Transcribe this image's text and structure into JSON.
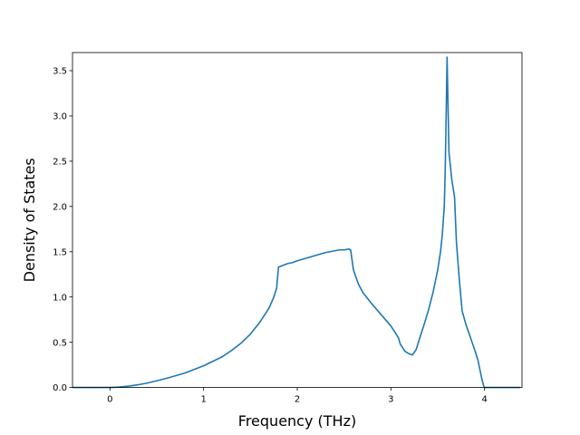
{
  "chart_data": {
    "type": "line",
    "title": "",
    "xlabel": "Frequency (THz)",
    "ylabel": "Density of States",
    "xlim": [
      -0.4,
      4.4
    ],
    "ylim": [
      0.0,
      3.7
    ],
    "x_ticks": [
      0,
      1,
      2,
      3,
      4
    ],
    "y_ticks": [
      0.0,
      0.5,
      1.0,
      1.5,
      2.0,
      2.5,
      3.0,
      3.5
    ],
    "x_tick_labels": [
      "0",
      "1",
      "2",
      "3",
      "4"
    ],
    "y_tick_labels": [
      "0.0",
      "0.5",
      "1.0",
      "1.5",
      "2.0",
      "2.5",
      "3.0",
      "3.5"
    ],
    "grid": false,
    "legend": "none",
    "colors": {
      "line": "#1f77b4",
      "axes": "#000000",
      "background": "#ffffff"
    },
    "series": [
      {
        "x": [
          -0.4,
          -0.2,
          0.0,
          0.1,
          0.2,
          0.3,
          0.4,
          0.5,
          0.6,
          0.7,
          0.8,
          0.9,
          1.0,
          1.1,
          1.2,
          1.3,
          1.4,
          1.5,
          1.6,
          1.7,
          1.75,
          1.78,
          1.8,
          1.85,
          1.9,
          1.95,
          2.0,
          2.1,
          2.2,
          2.3,
          2.4,
          2.45,
          2.5,
          2.55,
          2.57,
          2.6,
          2.65,
          2.7,
          2.8,
          2.9,
          3.0,
          3.05,
          3.08,
          3.1,
          3.15,
          3.2,
          3.23,
          3.27,
          3.3,
          3.35,
          3.4,
          3.45,
          3.5,
          3.53,
          3.55,
          3.57,
          3.58,
          3.59,
          3.6,
          3.62,
          3.65,
          3.68,
          3.7,
          3.73,
          3.76,
          3.8,
          3.85,
          3.9,
          3.93,
          3.95,
          3.97,
          3.99,
          4.0,
          4.1,
          4.2,
          4.3,
          4.38
        ],
        "y": [
          0.0,
          0.0,
          0.0,
          0.005,
          0.015,
          0.03,
          0.05,
          0.075,
          0.1,
          0.13,
          0.16,
          0.2,
          0.24,
          0.29,
          0.34,
          0.41,
          0.49,
          0.59,
          0.72,
          0.88,
          1.0,
          1.1,
          1.33,
          1.35,
          1.37,
          1.38,
          1.4,
          1.43,
          1.46,
          1.49,
          1.51,
          1.52,
          1.52,
          1.53,
          1.52,
          1.3,
          1.15,
          1.05,
          0.92,
          0.8,
          0.68,
          0.6,
          0.55,
          0.48,
          0.4,
          0.37,
          0.36,
          0.42,
          0.52,
          0.68,
          0.85,
          1.05,
          1.3,
          1.5,
          1.7,
          2.0,
          2.4,
          3.0,
          3.65,
          2.6,
          2.3,
          2.1,
          1.6,
          1.2,
          0.85,
          0.7,
          0.55,
          0.4,
          0.3,
          0.2,
          0.1,
          0.02,
          0.0,
          0.0,
          0.0,
          0.0,
          0.0
        ]
      }
    ]
  }
}
